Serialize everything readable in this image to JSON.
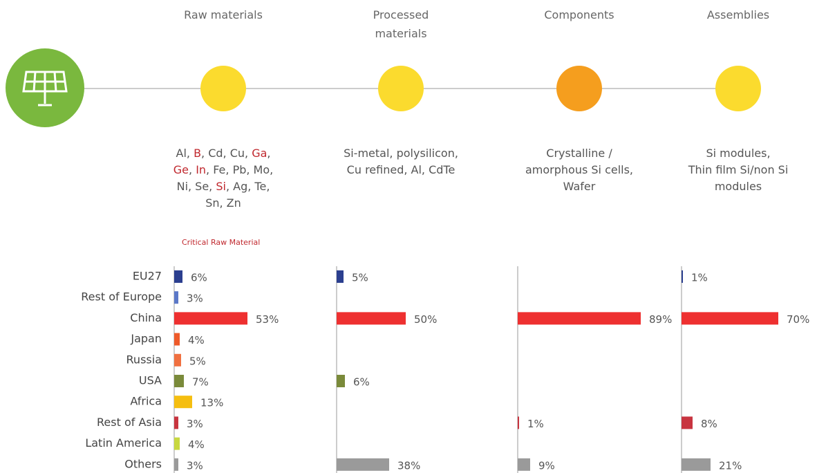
{
  "stages": [
    {
      "name": "Raw materials",
      "circle_color": "#fbdb2e",
      "materials": [
        [
          {
            "text": "Al, "
          },
          {
            "text": "B",
            "critical": true
          },
          {
            "text": ", Cd, Cu, "
          },
          {
            "text": "Ga",
            "critical": true
          },
          {
            "text": ","
          }
        ],
        [
          {
            "text": "Ge",
            "critical": true
          },
          {
            "text": ", "
          },
          {
            "text": "In",
            "critical": true
          },
          {
            "text": ", Fe, Pb, Mo,"
          }
        ],
        [
          {
            "text": "Ni, Se, "
          },
          {
            "text": "Si",
            "critical": true
          },
          {
            "text": ", Ag, Te,"
          }
        ],
        [
          {
            "text": "Sn, Zn"
          }
        ]
      ]
    },
    {
      "name": "Processed materials",
      "circle_color": "#fbdb2e",
      "materials": [
        [
          {
            "text": "Si-metal, polysilicon,"
          }
        ],
        [
          {
            "text": "Cu refined, Al, CdTe"
          }
        ]
      ]
    },
    {
      "name": "Components",
      "circle_color": "#f59e1e",
      "materials": [
        [
          {
            "text": "Crystalline /"
          }
        ],
        [
          {
            "text": "amorphous Si cells,"
          }
        ],
        [
          {
            "text": "Wafer"
          }
        ]
      ]
    },
    {
      "name": "Assemblies",
      "circle_color": "#fbdb2e",
      "materials": [
        [
          {
            "text": "Si modules,"
          }
        ],
        [
          {
            "text": "Thin film Si/non Si"
          }
        ],
        [
          {
            "text": "modules"
          }
        ]
      ]
    }
  ],
  "critical_label": "Critical Raw Material",
  "chart_data": {
    "type": "bar",
    "orientation": "horizontal",
    "categories": [
      "EU27",
      "Rest of Europe",
      "China",
      "Japan",
      "Russia",
      "USA",
      "Africa",
      "Rest of Asia",
      "Latin America",
      "Others"
    ],
    "colors": [
      "#2b3f8f",
      "#5b78c8",
      "#ee3030",
      "#ee5a2a",
      "#f07040",
      "#7a8a3a",
      "#f5be10",
      "#c8343f",
      "#c8d840",
      "#9a9a9a"
    ],
    "series": [
      {
        "values": [
          6,
          3,
          53,
          4,
          5,
          7,
          13,
          3,
          4,
          3
        ],
        "value_labels": [
          "6%",
          "3%",
          "53%",
          "4%",
          "5%",
          "7%",
          "13%",
          "3%",
          "4%",
          "3%"
        ]
      },
      {
        "values": [
          5,
          null,
          50,
          null,
          null,
          6,
          null,
          null,
          null,
          38
        ],
        "value_labels": [
          "5%",
          null,
          "50%",
          null,
          null,
          "6%",
          null,
          null,
          null,
          "38%"
        ]
      },
      {
        "values": [
          null,
          null,
          89,
          null,
          null,
          null,
          null,
          1,
          null,
          9
        ],
        "value_labels": [
          null,
          null,
          "89%",
          null,
          null,
          null,
          null,
          "1%",
          null,
          "9%"
        ]
      },
      {
        "values": [
          1,
          null,
          70,
          null,
          null,
          null,
          null,
          8,
          null,
          21
        ],
        "value_labels": [
          "1%",
          null,
          "70%",
          null,
          null,
          null,
          null,
          "8%",
          null,
          "21%"
        ]
      }
    ]
  }
}
